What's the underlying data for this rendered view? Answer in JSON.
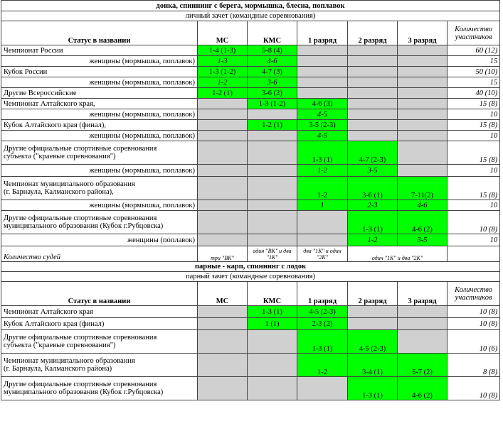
{
  "colors": {
    "green": "#00ff00",
    "gray": "#d0d0d0"
  },
  "s1": {
    "title": "донка, спиннинг с берега, мормышка, блесна, поплавок",
    "subtitle": "личный зачет (командные соревнования)",
    "hdr": [
      "Статус в названии",
      "МС",
      "КМС",
      "1 разряд",
      "2 разряд",
      "3 разряд",
      "Количество участников"
    ],
    "rows": [
      [
        "Чемпионат России",
        "1-4 (1-3)",
        "5-8 (4)",
        "",
        "",
        "",
        "60 (12)"
      ],
      [
        "женщины (мормышка, поплавок)",
        "1-3",
        "4-6",
        "",
        "",
        "",
        "15"
      ],
      [
        "Кубок России",
        "1-3 (1-2)",
        "4-7 (3)",
        "",
        "",
        "",
        "50 (10)"
      ],
      [
        "женщины (мормышка, поплавок)",
        "1-2",
        "3-6",
        "",
        "",
        "",
        "15"
      ],
      [
        "Другие Всероссийские",
        "1-2 (1)",
        "3-6 (2)",
        "",
        "",
        "",
        "40 (10)"
      ],
      [
        "Чемпионат Алтайского края,",
        "",
        "1-3 (1-2)",
        "4-6 (3)",
        "",
        "",
        "15 (8)"
      ],
      [
        "женщины (мормышка, поплавок)",
        "",
        "",
        "4-5",
        "",
        "",
        "10"
      ],
      [
        "Кубок Алтайского края (финал),",
        "",
        "1-2 (1)",
        "3-5 (2-3)",
        "",
        "",
        "15 (8)"
      ],
      [
        "женщины (мормышка, поплавок)",
        "",
        "",
        "4-5",
        "",
        "",
        "10"
      ],
      [
        "Другие официальные спортивные соревнования\nсубъекта (\"краевые соревнования\")",
        "",
        "",
        "1-3 (1)",
        "4-7 (2-3)",
        "",
        "15 (8)"
      ],
      [
        "женщины (мормышка, поплавок)",
        "",
        "",
        "1-2",
        "3-5",
        "",
        "10"
      ],
      [
        "Чемпионат муниципального образования\n(г. Барнаула, Калманского района),",
        "",
        "",
        "1-2",
        "3-6 (1)",
        "7-11(2)",
        "15 (8)"
      ],
      [
        "женщины (мормышка, поплавок)",
        "",
        "",
        "1",
        "2-3",
        "4-6",
        "10"
      ],
      [
        "Другие официальные спортивные соревнования\nмуниципального образования (Кубок г.Рубцовска)",
        "",
        "",
        "",
        "1-3 (1)",
        "4-6 (2)",
        "10 (8)"
      ],
      [
        "женщины (поплавок)",
        "",
        "",
        "",
        "1-2",
        "3-5",
        "10"
      ]
    ],
    "judges": [
      "Количество судей",
      "три \"ВК\"",
      "один \"ВК\" и два \"1К\"",
      "два \"1К\" и один \"2К\"",
      "один \"1К\" и два \"2К\""
    ]
  },
  "s2": {
    "title": "парные - карп, спиннинг с лодок",
    "subtitle": "парный зачет (командные соревнования)",
    "hdr": [
      "Статус в названии",
      "МС",
      "КМС",
      "1 разряд",
      "2 разряд",
      "3 разряд",
      "Количество участников"
    ],
    "rows": [
      [
        "Чемпионат Алтайского края",
        "",
        "1-3 (1)",
        "4-5 (2-3)",
        "",
        "",
        "10 (8)"
      ],
      [
        "Кубок Алтайского края (финал)",
        "",
        "1 (1)",
        "2-3 (2)",
        "",
        "",
        "10 (8)"
      ],
      [
        "Другие официальные спортивные соревнования\nсубъекта (\"краевые соревнования\")",
        "",
        "",
        "1-3 (1)",
        "4-5 (2-3)",
        "",
        "10 (6)"
      ],
      [
        "Чемпионат муниципального образования\n(г. Барнаула, Калманского района)",
        "",
        "",
        "1-2",
        "3-4 (1)",
        "5-7 (2)",
        "8 (8)"
      ],
      [
        "Другие официальные спортивные соревнования\nмуниципального образования (Кубок г.Рубцовска)",
        "",
        "",
        "",
        "1-3 (1)",
        "4-6 (2)",
        "10 (8)"
      ]
    ]
  }
}
